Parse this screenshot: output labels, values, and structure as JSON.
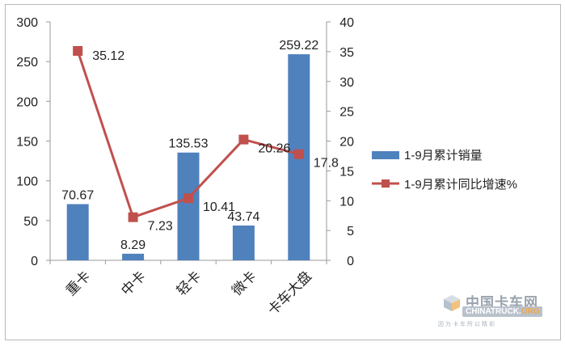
{
  "chart_data": {
    "type": "bar+line",
    "categories": [
      "重卡",
      "中卡",
      "轻卡",
      "微卡",
      "卡车大盘"
    ],
    "series": [
      {
        "name": "1-9月累计销量",
        "type": "bar",
        "axis": "left",
        "values": [
          70.67,
          8.29,
          135.53,
          43.74,
          259.22
        ],
        "labels": [
          "70.67",
          "8.29",
          "135.53",
          "43.74",
          "259.22"
        ],
        "color": "#4f81bd"
      },
      {
        "name": "1-9月累计同比增速%",
        "type": "line",
        "axis": "right",
        "values": [
          35.12,
          7.23,
          10.41,
          20.26,
          17.8
        ],
        "labels": [
          "35.12",
          "7.23",
          "10.41",
          "20.26",
          "17.8"
        ],
        "color": "#c0504d"
      }
    ],
    "y_left": {
      "range": [
        0,
        300
      ],
      "ticks": [
        "0",
        "50",
        "100",
        "150",
        "200",
        "250",
        "300"
      ]
    },
    "y_right": {
      "range": [
        0,
        40
      ],
      "ticks": [
        "0",
        "5",
        "10",
        "15",
        "20",
        "25",
        "30",
        "35",
        "40"
      ]
    },
    "grid": false,
    "legend": "right"
  },
  "watermark": {
    "cn": "中国卡车网",
    "en_main": "CHINATRUCK.",
    "en_accent": "ORG",
    "sub": "因为卡车所以精彩"
  }
}
